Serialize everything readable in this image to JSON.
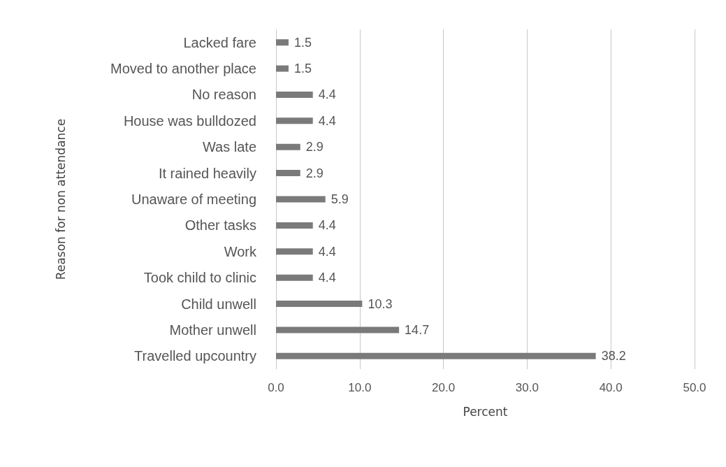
{
  "chart_data": {
    "type": "bar",
    "orientation": "horizontal",
    "xlabel": "Percent",
    "ylabel": "Reason for non attendance",
    "categories": [
      "Lacked fare",
      "Moved to another place",
      "No reason",
      "House was bulldozed",
      "Was late",
      "It rained heavily",
      "Unaware of meeting",
      "Other tasks",
      "Work",
      "Took child to clinic",
      "Child unwell",
      "Mother unwell",
      "Travelled upcountry"
    ],
    "values": [
      1.5,
      1.5,
      4.4,
      4.4,
      2.9,
      2.9,
      5.9,
      4.4,
      4.4,
      4.4,
      10.3,
      14.7,
      38.2
    ],
    "color": "#7a7a7a",
    "data_labels": true,
    "grid": "x",
    "xlim": [
      0,
      50
    ],
    "xticks": [
      {
        "value": 0,
        "label": "0.0"
      },
      {
        "value": 10,
        "label": "10.0"
      },
      {
        "value": 20,
        "label": "20.0"
      },
      {
        "value": 30,
        "label": "30.0"
      },
      {
        "value": 40,
        "label": "40.0"
      },
      {
        "value": 50,
        "label": "50.0"
      }
    ]
  }
}
